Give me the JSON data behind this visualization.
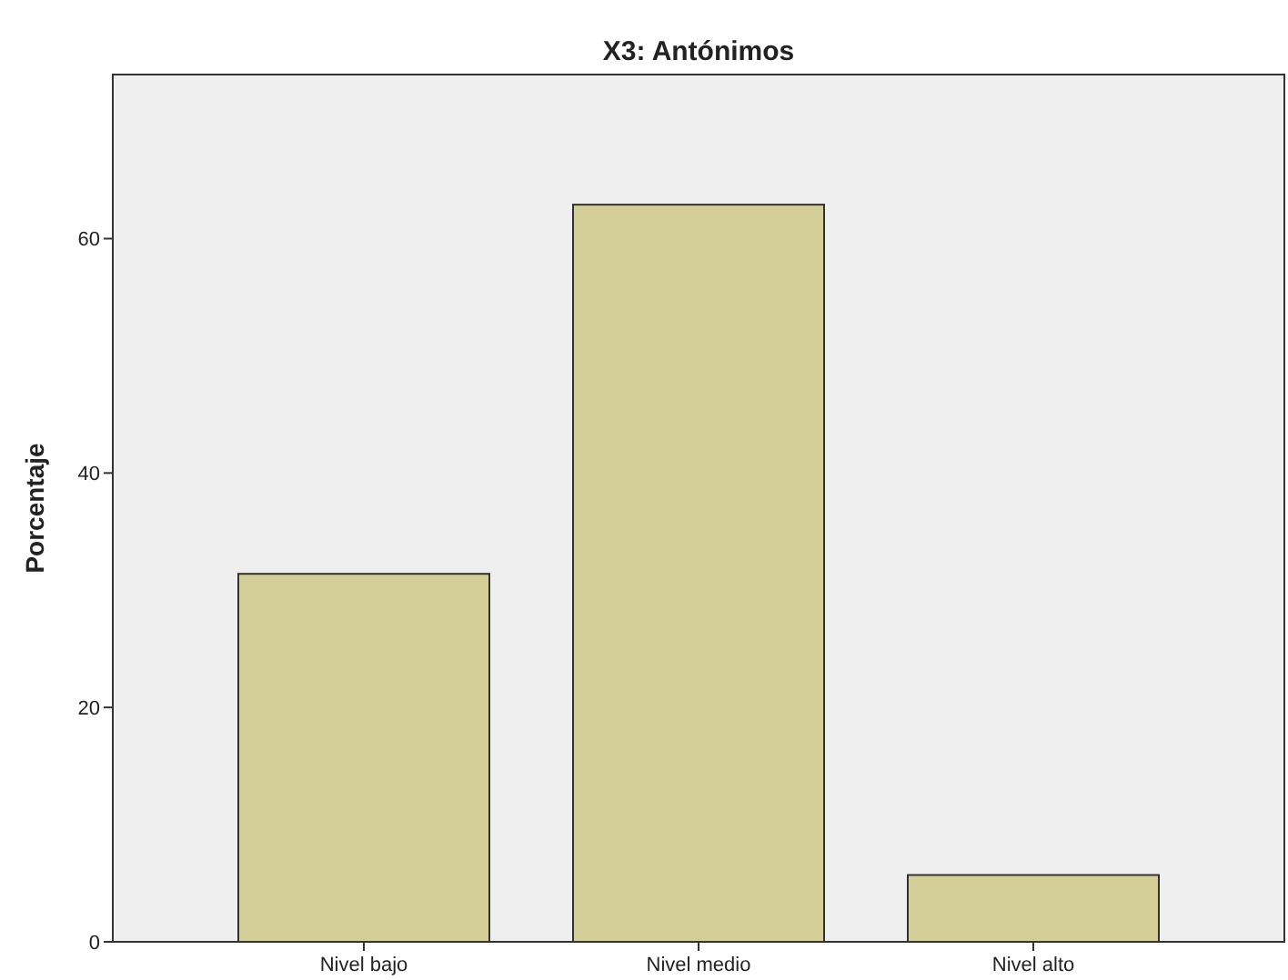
{
  "chart_data": {
    "type": "bar",
    "title": "X3: Antónimos",
    "ylabel": "Porcentaje",
    "categories": [
      "Nivel bajo",
      "Nivel medio",
      "Nivel alto"
    ],
    "values": [
      31.4,
      62.9,
      5.7
    ],
    "color": "#d3ce98",
    "ylim": [
      0,
      74
    ],
    "yticks": [
      0,
      20,
      40,
      60
    ],
    "grid": false
  }
}
